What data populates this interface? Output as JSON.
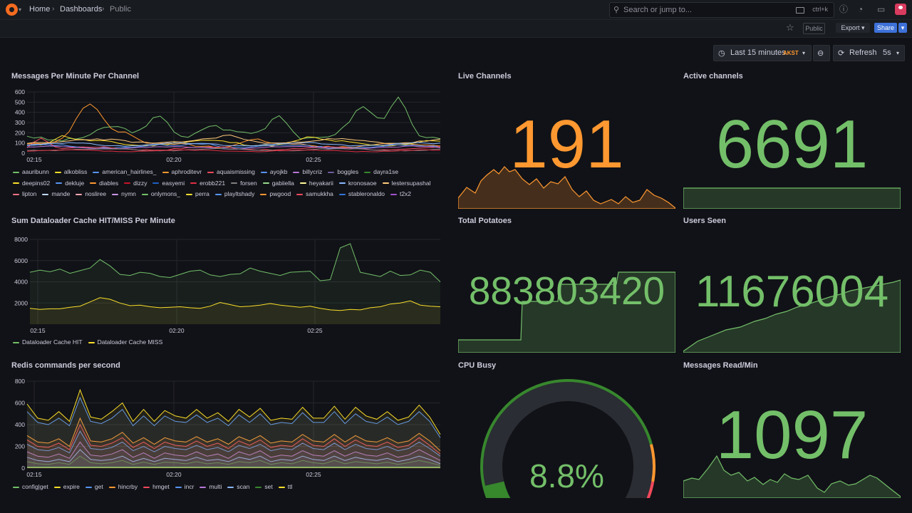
{
  "breadcrumb": {
    "home": "Home",
    "dashboards": "Dashboards",
    "current": "Public"
  },
  "search": {
    "placeholder": "Search or jump to...",
    "shortcut": "ctrl+k"
  },
  "toolbar": {
    "public_badge": "Public",
    "export_label": "Export",
    "share_label": "Share"
  },
  "time": {
    "range": "Last 15 minutes",
    "tz": "AKST",
    "refresh_label": "Refresh",
    "refresh_interval": "5s"
  },
  "colors": {
    "green": "#73bf69",
    "orange": "#ff9830",
    "bg": "#111217",
    "grid": "#2c3037"
  },
  "panels": {
    "messages": {
      "title": "Messages Per Minute Per Channel"
    },
    "live": {
      "title": "Live Channels",
      "value": "191"
    },
    "active": {
      "title": "Active channels",
      "value": "6691"
    },
    "dataloader": {
      "title": "Sum Dataloader Cache HIT/MISS Per Minute"
    },
    "potatoes": {
      "title": "Total Potatoes",
      "value": "883803420"
    },
    "users": {
      "title": "Users Seen",
      "value": "11676004"
    },
    "redis": {
      "title": "Redis commands per second"
    },
    "cpu": {
      "title": "CPU Busy",
      "value": "8.8%",
      "percent": 8.8
    },
    "msgread": {
      "title": "Messages Read/Min",
      "value": "1097"
    }
  },
  "chart_data": [
    {
      "type": "line",
      "name": "Messages Per Minute Per Channel",
      "yticks": [
        "0",
        "100",
        "200",
        "300",
        "400",
        "500",
        "600"
      ],
      "xticks": [
        "02:15",
        "02:20",
        "02:25"
      ],
      "ylim": [
        0,
        600
      ],
      "legend": [
        {
          "name": "aauribunn",
          "color": "#73bf69"
        },
        {
          "name": "alkobliss",
          "color": "#fade2a"
        },
        {
          "name": "american_hairlines_",
          "color": "#5794f2"
        },
        {
          "name": "aphroditevr",
          "color": "#ff9830"
        },
        {
          "name": "aquaismissing",
          "color": "#f2495c"
        },
        {
          "name": "ayojkb",
          "color": "#5794f2"
        },
        {
          "name": "billycriz",
          "color": "#b877d9"
        },
        {
          "name": "boggles",
          "color": "#705da0"
        },
        {
          "name": "dayra1se",
          "color": "#37872d"
        },
        {
          "name": "deepins02",
          "color": "#fade2a"
        },
        {
          "name": "dekluje",
          "color": "#5794f2"
        },
        {
          "name": "diables",
          "color": "#ff9830"
        },
        {
          "name": "dizzy",
          "color": "#c4162a"
        },
        {
          "name": "easyemi",
          "color": "#1f60c4"
        },
        {
          "name": "erobb221",
          "color": "#e02f44"
        },
        {
          "name": "forsen",
          "color": "#808080"
        },
        {
          "name": "gabiiella",
          "color": "#96d98d"
        },
        {
          "name": "heyakarii",
          "color": "#fff899"
        },
        {
          "name": "kronosaoe",
          "color": "#8ab8ff"
        },
        {
          "name": "lestersupashal",
          "color": "#ffcb7d"
        },
        {
          "name": "lipton",
          "color": "#ff7383"
        },
        {
          "name": "mande",
          "color": "#c0d8ff"
        },
        {
          "name": "nosliree",
          "color": "#ffa6b0"
        },
        {
          "name": "nymn",
          "color": "#ca95e5"
        },
        {
          "name": "onlymons_",
          "color": "#73bf69"
        },
        {
          "name": "perra",
          "color": "#fade2a"
        },
        {
          "name": "playltshady",
          "color": "#5794f2"
        },
        {
          "name": "pwgood",
          "color": "#ff9830"
        },
        {
          "name": "samukkha",
          "color": "#f2495c"
        },
        {
          "name": "stableronaldo",
          "color": "#3274d9"
        },
        {
          "name": "t2x2",
          "color": "#a352cc"
        }
      ]
    },
    {
      "type": "line",
      "name": "Sum Dataloader Cache HIT/MISS Per Minute",
      "yticks": [
        "2000",
        "4000",
        "6000",
        "8000"
      ],
      "xticks": [
        "02:15",
        "02:20",
        "02:25"
      ],
      "ylim": [
        0,
        8000
      ],
      "series": [
        {
          "name": "Dataloader Cache HIT",
          "color": "#73bf69",
          "values": [
            4900,
            5100,
            4950,
            5200,
            4800,
            5050,
            5300,
            6100,
            5500,
            4700,
            4600,
            4900,
            4800,
            4500,
            4400,
            4700,
            5000,
            5100,
            4650,
            4500,
            4700,
            4750,
            5300,
            5000,
            4800,
            4600,
            4900,
            4950,
            5000,
            4100,
            4200,
            7200,
            7600,
            4900,
            4700,
            4500,
            5000,
            4600,
            4650,
            5100,
            4900,
            4000
          ]
        },
        {
          "name": "Dataloader Cache MISS",
          "color": "#fade2a",
          "values": [
            1500,
            1400,
            1450,
            1450,
            1600,
            1700,
            2100,
            2500,
            2350,
            2000,
            1750,
            1800,
            1650,
            1550,
            1600,
            1650,
            1550,
            1500,
            1700,
            2050,
            1850,
            1650,
            1700,
            1800,
            1950,
            1800,
            1700,
            1600,
            1700,
            1500,
            1350,
            1300,
            1400,
            1350,
            1550,
            1650,
            1900,
            2000,
            2200,
            1800,
            1700,
            1650
          ]
        }
      ]
    },
    {
      "type": "line",
      "name": "Redis commands per second",
      "yticks": [
        "0",
        "200",
        "400",
        "600",
        "800"
      ],
      "xticks": [
        "02:15",
        "02:20",
        "02:25"
      ],
      "ylim": [
        0,
        800
      ],
      "series": [
        {
          "name": "config|get",
          "color": "#73bf69",
          "values": [
            10,
            10,
            10,
            10,
            10,
            10,
            10,
            10,
            10,
            10,
            10,
            10,
            10,
            10,
            10,
            10,
            10,
            10,
            10,
            10,
            10,
            10,
            10,
            10,
            10,
            10,
            10,
            10,
            10,
            10,
            10,
            10,
            10,
            10,
            10,
            10,
            10,
            10,
            10,
            10
          ]
        },
        {
          "name": "expire",
          "color": "#fade2a",
          "values": [
            590,
            460,
            440,
            520,
            430,
            720,
            470,
            450,
            520,
            600,
            430,
            540,
            430,
            530,
            480,
            460,
            540,
            460,
            510,
            430,
            540,
            470,
            550,
            440,
            460,
            450,
            560,
            460,
            460,
            570,
            450,
            560,
            480,
            450,
            520,
            440,
            470,
            580,
            470,
            310
          ]
        },
        {
          "name": "get",
          "color": "#5794f2",
          "values": [
            520,
            420,
            400,
            460,
            390,
            650,
            430,
            410,
            460,
            540,
            390,
            480,
            390,
            480,
            430,
            420,
            490,
            420,
            460,
            390,
            490,
            420,
            500,
            400,
            420,
            410,
            510,
            420,
            420,
            520,
            410,
            500,
            430,
            410,
            470,
            400,
            430,
            520,
            430,
            280
          ]
        },
        {
          "name": "hincrby",
          "color": "#ff9830",
          "values": [
            300,
            240,
            230,
            270,
            200,
            460,
            250,
            240,
            270,
            330,
            230,
            280,
            220,
            280,
            250,
            240,
            290,
            240,
            270,
            220,
            290,
            250,
            300,
            230,
            250,
            240,
            310,
            250,
            240,
            310,
            240,
            300,
            250,
            240,
            280,
            230,
            250,
            320,
            250,
            160
          ]
        },
        {
          "name": "hmget",
          "color": "#f2495c",
          "values": [
            260,
            200,
            190,
            230,
            170,
            400,
            210,
            200,
            230,
            280,
            190,
            240,
            180,
            240,
            210,
            200,
            250,
            200,
            230,
            180,
            250,
            210,
            260,
            190,
            210,
            200,
            270,
            210,
            200,
            270,
            200,
            260,
            210,
            200,
            240,
            190,
            210,
            280,
            210,
            130
          ]
        },
        {
          "name": "incr",
          "color": "#5794f2",
          "values": [
            220,
            170,
            160,
            190,
            140,
            340,
            180,
            170,
            190,
            240,
            160,
            200,
            150,
            200,
            180,
            170,
            210,
            170,
            190,
            150,
            210,
            180,
            220,
            160,
            180,
            170,
            230,
            180,
            170,
            230,
            170,
            220,
            180,
            170,
            200,
            160,
            180,
            240,
            180,
            110
          ]
        },
        {
          "name": "multi",
          "color": "#b877d9",
          "values": [
            150,
            110,
            100,
            130,
            90,
            240,
            120,
            110,
            130,
            170,
            100,
            140,
            90,
            140,
            120,
            110,
            150,
            110,
            130,
            90,
            150,
            120,
            160,
            100,
            120,
            110,
            160,
            120,
            110,
            160,
            110,
            150,
            120,
            110,
            140,
            100,
            120,
            170,
            120,
            70
          ]
        },
        {
          "name": "scan",
          "color": "#8ab8ff",
          "values": [
            100,
            70,
            60,
            80,
            60,
            170,
            80,
            70,
            80,
            110,
            60,
            90,
            60,
            90,
            80,
            70,
            100,
            70,
            80,
            60,
            100,
            80,
            110,
            60,
            80,
            70,
            110,
            80,
            70,
            110,
            70,
            100,
            80,
            70,
            90,
            60,
            80,
            110,
            80,
            40
          ]
        },
        {
          "name": "set",
          "color": "#37872d",
          "values": [
            60,
            40,
            35,
            50,
            35,
            110,
            50,
            40,
            50,
            70,
            35,
            55,
            35,
            55,
            50,
            40,
            60,
            40,
            50,
            35,
            60,
            50,
            70,
            35,
            50,
            40,
            70,
            50,
            40,
            70,
            40,
            60,
            50,
            40,
            55,
            35,
            50,
            70,
            50,
            25
          ]
        },
        {
          "name": "ttl",
          "color": "#fade2a",
          "values": [
            5,
            5,
            5,
            5,
            5,
            5,
            5,
            5,
            5,
            5,
            5,
            5,
            5,
            5,
            5,
            5,
            5,
            5,
            5,
            5,
            5,
            5,
            5,
            5,
            5,
            5,
            5,
            5,
            5,
            5,
            5,
            5,
            5,
            5,
            5,
            5,
            5,
            5,
            5,
            5
          ]
        }
      ]
    }
  ]
}
